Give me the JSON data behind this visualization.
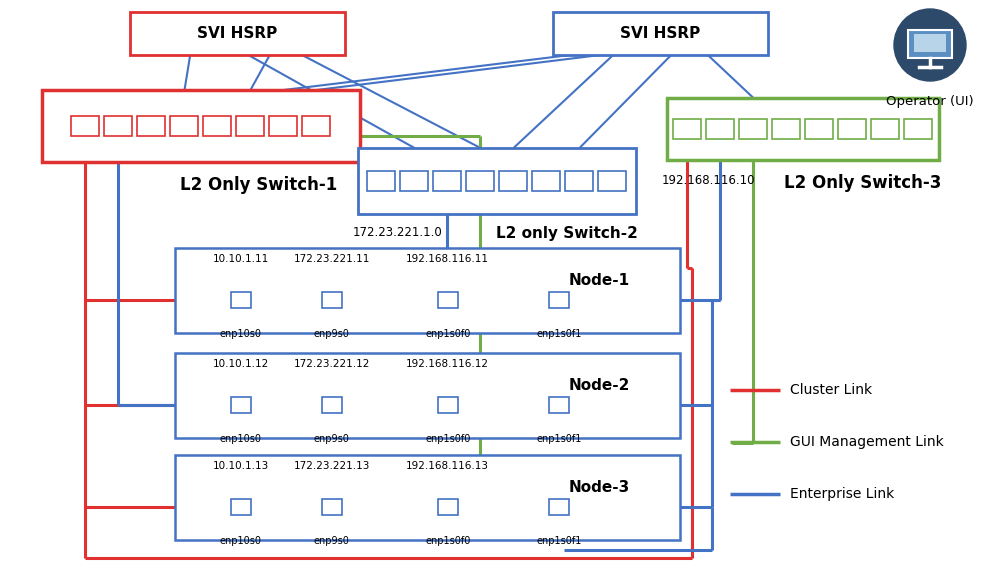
{
  "bg_color": "#ffffff",
  "cluster_color": "#e03030",
  "gui_color": "#70ad47",
  "enterprise_color": "#4472c4",
  "legend": [
    {
      "label": "Cluster Link",
      "color": "#e03030"
    },
    {
      "label": "GUI Management Link",
      "color": "#70ad47"
    },
    {
      "label": "Enterprise Link",
      "color": "#4472c4"
    }
  ],
  "svi1_label": "SVI HSRP",
  "svi2_label": "SVI HSRP",
  "sw1_label": "L2 Only Switch-1",
  "sw2_label": "L2 only Switch-2",
  "sw3_label": "L2 Only Switch-3",
  "node_labels": [
    "Node-1",
    "Node-2",
    "Node-3"
  ],
  "port_labels": [
    "enp10s0",
    "enp9s0",
    "enp1s0f0",
    "enp1s0f1"
  ],
  "node1_ips": [
    "10.10.1.11",
    "172.23.221.11",
    "192.168.116.11",
    ""
  ],
  "node2_ips": [
    "10.10.1.12",
    "172.23.221.12",
    "192.168.116.12",
    ""
  ],
  "node3_ips": [
    "10.10.1.13",
    "172.23.221.13",
    "192.168.116.13",
    ""
  ],
  "sw2_ip_label": "172.23.221.1.0",
  "sw3_ip_label": "192.168.116.10",
  "operator_label": "Operator (UI)"
}
